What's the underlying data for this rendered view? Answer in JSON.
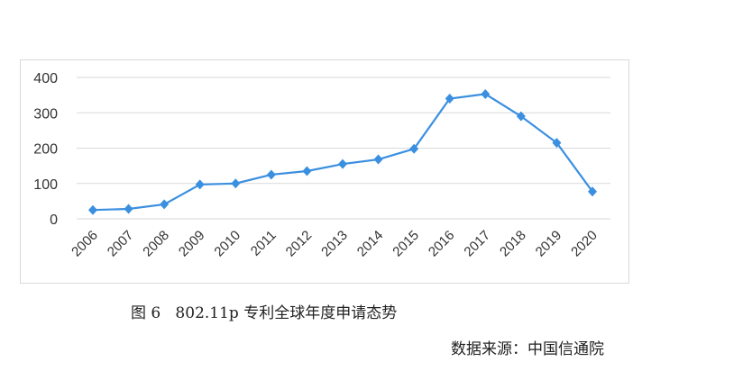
{
  "chart_data": {
    "type": "line",
    "categories": [
      "2006",
      "2007",
      "2008",
      "2009",
      "2010",
      "2011",
      "2012",
      "2013",
      "2014",
      "2015",
      "2016",
      "2017",
      "2018",
      "2019",
      "2020"
    ],
    "values": [
      25,
      28,
      41,
      97,
      100,
      125,
      135,
      155,
      168,
      198,
      340,
      353,
      290,
      215,
      77
    ],
    "ylim": [
      0,
      400
    ],
    "yticks": [
      0,
      100,
      200,
      300,
      400
    ],
    "grid": true,
    "color": "#3a8fe0",
    "marker": "diamond",
    "title": "",
    "xlabel": "",
    "ylabel": ""
  },
  "caption": "图 6   802.11p 专利全球年度申请态势",
  "source": "数据来源：中国信通院"
}
